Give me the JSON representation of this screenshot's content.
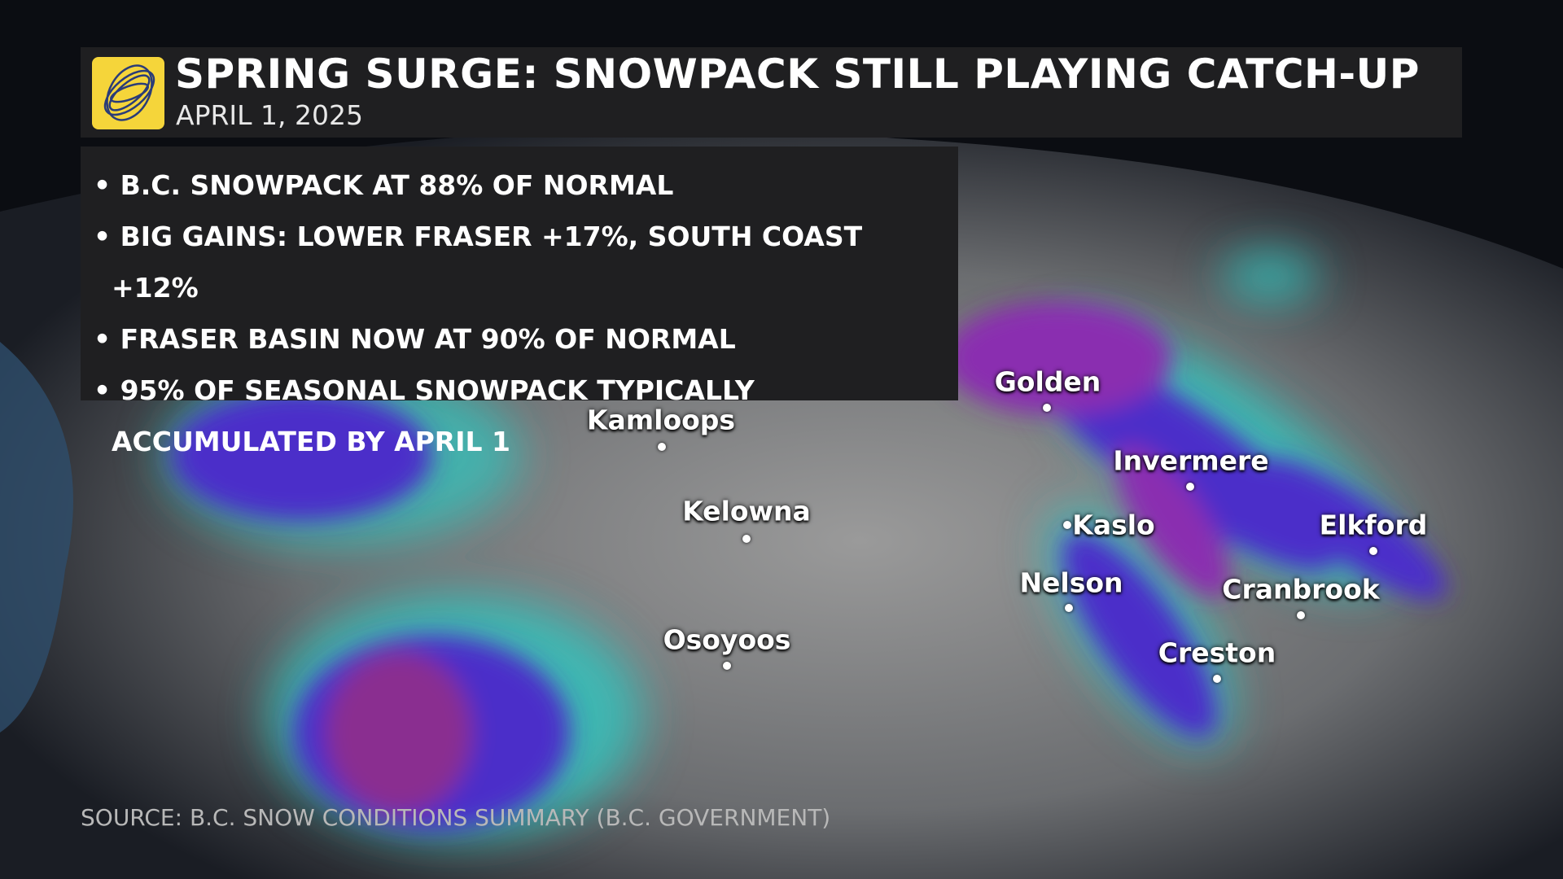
{
  "header": {
    "title": "SPRING SURGE: SNOWPACK STILL PLAYING CATCH-UP",
    "date": "APRIL 1, 2025"
  },
  "bullets": [
    "B.C. SNOWPACK AT 88% OF NORMAL",
    "BIG GAINS: LOWER FRASER +17%, SOUTH COAST +12%",
    "FRASER BASIN NOW AT 90% OF NORMAL",
    "95% OF SEASONAL SNOWPACK TYPICALLY ACCUMULATED BY APRIL 1"
  ],
  "cities": [
    "Golden",
    "Kamloops",
    "Invermere",
    "Kelowna",
    "Kaslo",
    "Elkford",
    "Nelson",
    "Cranbrook",
    "Creston",
    "Osoyoos"
  ],
  "source": "SOURCE: B.C. SNOW CONDITIONS SUMMARY (B.C. GOVERNMENT)"
}
